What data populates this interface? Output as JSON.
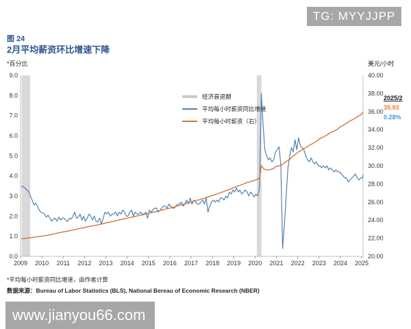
{
  "badge": {
    "text": "TG: MYYJJPP"
  },
  "watermark": {
    "text": "www.jianyou66.com"
  },
  "header": {
    "figure_label": "图 24",
    "title": "2月平均薪资环比增速下降"
  },
  "axes": {
    "left_unit": "*百分比",
    "right_unit": "美元/小时",
    "left_ticks": [
      "9.0",
      "8.0",
      "7.0",
      "6.0",
      "5.0",
      "4.0",
      "3.0",
      "2.0",
      "1.0",
      "0.0"
    ],
    "right_ticks": [
      "40.00",
      "38.00",
      "36.00",
      "34.00",
      "32.00",
      "30.00",
      "28.00",
      "26.00",
      "24.00",
      "22.00",
      "20.00"
    ],
    "x_ticks": [
      "2009",
      "2010",
      "2011",
      "2012",
      "2013",
      "2014",
      "2015",
      "2016",
      "2017",
      "2018",
      "2019",
      "2020",
      "2021",
      "2022",
      "2023",
      "2024",
      "2025"
    ]
  },
  "legend": {
    "items": [
      {
        "label": "经济衰退期",
        "color": "#c9c9c9",
        "type": "band"
      },
      {
        "label": "平均每小时薪资同比增速",
        "color": "#4f81ad",
        "type": "line"
      },
      {
        "label": "平均每小时薪资（右）",
        "color": "#d0763b",
        "type": "line"
      }
    ]
  },
  "annotation": {
    "date": "2025/2",
    "wage": "35.93",
    "growth": "0.28%",
    "wage_color": "#ed7d31",
    "growth_color": "#3d9bd4"
  },
  "footnotes": {
    "note": "*平均每小时薪资同比增速，由作者计算",
    "source": "数据来源：Bureau of Labor Statistics (BLS), National Bereau of Economic Research (NBER)"
  },
  "colors": {
    "title": "#2d5492",
    "axis_line": "#bfbfbf",
    "tick_text": "#333333",
    "recession": "#d9d9d9",
    "badge_bg": "#a7a7a7"
  },
  "chart_data": {
    "type": "line",
    "title": "2月平均薪资环比增速下降",
    "x_start": 2009,
    "freq": "monthly",
    "x_range": [
      2009,
      2025.17
    ],
    "grid": false,
    "legend_position": "inside-top",
    "left_axis": {
      "label": "*百分比",
      "range": [
        0,
        9
      ]
    },
    "right_axis": {
      "label": "美元/小时",
      "range": [
        20,
        40
      ]
    },
    "recessions": [
      [
        2009.05,
        2009.45
      ],
      [
        2020.08,
        2020.3
      ]
    ],
    "series": [
      {
        "name": "平均每小时薪资同比增速",
        "axis": "left",
        "color": "#4f81ad",
        "values": [
          3.5,
          3.45,
          3.4,
          3.3,
          3.25,
          3.0,
          2.8,
          2.55,
          2.65,
          2.5,
          2.3,
          2.2,
          2.15,
          2.1,
          1.95,
          2.05,
          1.9,
          1.75,
          1.85,
          1.9,
          1.75,
          1.95,
          1.8,
          1.9,
          1.9,
          1.8,
          1.75,
          1.9,
          1.85,
          2.0,
          2.2,
          1.9,
          1.95,
          2.1,
          1.8,
          2.0,
          1.75,
          1.9,
          2.1,
          2.0,
          1.8,
          2.0,
          1.75,
          1.7,
          1.9,
          1.6,
          1.9,
          2.2,
          2.1,
          2.2,
          2.0,
          2.1,
          2.1,
          2.2,
          2.0,
          2.2,
          2.1,
          2.3,
          2.2,
          2.0,
          2.0,
          2.2,
          2.3,
          2.0,
          2.2,
          2.1,
          2.1,
          2.2,
          2.1,
          2.1,
          2.2,
          1.9,
          2.3,
          2.2,
          2.3,
          2.4,
          2.4,
          2.2,
          2.3,
          2.4,
          2.5,
          2.5,
          2.4,
          2.6,
          2.5,
          2.4,
          2.4,
          2.5,
          2.6,
          2.6,
          2.7,
          2.5,
          2.6,
          2.8,
          2.6,
          2.9,
          2.6,
          2.8,
          2.7,
          2.6,
          2.6,
          2.7,
          2.8,
          2.6,
          2.9,
          2.2,
          2.5,
          2.7,
          2.8,
          2.7,
          2.8,
          2.7,
          2.9,
          2.9,
          2.8,
          3.0,
          2.9,
          3.2,
          3.1,
          3.3,
          3.2,
          3.4,
          3.2,
          3.3,
          3.1,
          3.2,
          3.3,
          3.2,
          3.0,
          3.2,
          3.1,
          2.95,
          3.1,
          3.0,
          3.4,
          8.1,
          6.6,
          5.3,
          5.0,
          4.8,
          4.9,
          4.7,
          4.8,
          5.2,
          5.3,
          5.45,
          4.5,
          0.4,
          1.6,
          3.0,
          4.4,
          5.0,
          5.4,
          5.2,
          5.8,
          5.3,
          5.9,
          5.5,
          5.4,
          5.3,
          5.0,
          4.8,
          4.7,
          4.9,
          4.7,
          4.6,
          4.7,
          4.5,
          4.5,
          4.4,
          4.5,
          4.4,
          4.5,
          4.3,
          4.4,
          4.3,
          4.2,
          4.3,
          4.2,
          4.2,
          4.1,
          4.0,
          3.9,
          3.9,
          3.7,
          3.8,
          3.9,
          4.0,
          4.1,
          3.9,
          3.8,
          3.9,
          3.9,
          4.05
        ]
      },
      {
        "name": "平均每小时薪资（右）",
        "axis": "right",
        "color": "#d0763b",
        "values": [
          21.93,
          21.95,
          21.98,
          22.0,
          22.03,
          22.05,
          22.08,
          22.12,
          22.14,
          22.16,
          22.19,
          22.21,
          22.26,
          22.28,
          22.3,
          22.34,
          22.38,
          22.42,
          22.46,
          22.5,
          22.55,
          22.6,
          22.63,
          22.68,
          22.72,
          22.75,
          22.78,
          22.83,
          22.87,
          22.92,
          22.96,
          23.0,
          23.05,
          23.09,
          23.12,
          23.16,
          23.2,
          23.25,
          23.3,
          23.33,
          23.36,
          23.4,
          23.44,
          23.48,
          23.53,
          23.56,
          23.62,
          23.67,
          23.72,
          23.76,
          23.8,
          23.84,
          23.88,
          23.93,
          23.97,
          24.02,
          24.07,
          24.11,
          24.16,
          24.2,
          24.24,
          24.29,
          24.33,
          24.36,
          24.41,
          24.46,
          24.5,
          24.55,
          24.57,
          24.62,
          24.68,
          24.7,
          24.77,
          24.81,
          24.87,
          24.9,
          24.98,
          25.01,
          25.07,
          25.12,
          25.15,
          25.23,
          25.27,
          25.28,
          25.37,
          25.42,
          25.45,
          25.53,
          25.58,
          25.64,
          25.71,
          25.74,
          25.81,
          25.9,
          25.92,
          25.99,
          26.03,
          26.11,
          26.14,
          26.21,
          26.25,
          26.31,
          26.38,
          26.42,
          26.53,
          26.55,
          26.61,
          26.7,
          26.76,
          26.81,
          26.89,
          26.96,
          27.04,
          27.11,
          27.17,
          27.26,
          27.33,
          27.4,
          27.48,
          27.57,
          27.63,
          27.72,
          27.78,
          27.85,
          27.92,
          27.99,
          28.08,
          28.16,
          28.19,
          28.27,
          28.35,
          28.37,
          28.47,
          28.54,
          28.7,
          30.05,
          29.76,
          29.6,
          29.55,
          29.54,
          29.59,
          29.65,
          29.72,
          29.95,
          29.95,
          30.01,
          30.06,
          30.17,
          30.33,
          30.48,
          30.61,
          30.73,
          30.92,
          31.1,
          31.23,
          31.4,
          31.57,
          31.64,
          31.8,
          31.9,
          32.02,
          32.13,
          32.27,
          32.37,
          32.47,
          32.6,
          32.72,
          32.85,
          33.01,
          33.11,
          33.2,
          33.32,
          33.42,
          33.56,
          33.68,
          33.78,
          33.85,
          33.95,
          34.07,
          34.23,
          34.38,
          34.46,
          34.6,
          34.7,
          34.86,
          34.97,
          35.07,
          35.16,
          35.28,
          35.43,
          35.53,
          35.64,
          35.83,
          35.93
        ]
      }
    ]
  }
}
